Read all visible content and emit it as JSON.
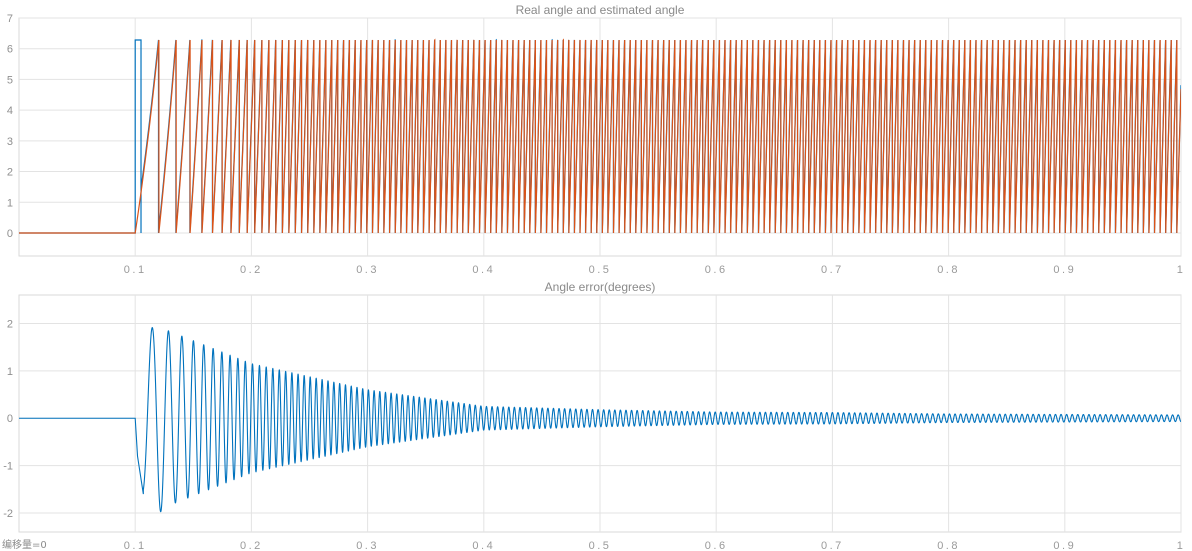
{
  "footer_text": "编移量=0",
  "chart_data": [
    {
      "type": "line",
      "title": "Real angle and estimated angle",
      "xlabel": "",
      "ylabel": "",
      "xlim": [
        0,
        1
      ],
      "ylim": [
        -0.75,
        7
      ],
      "grid": true,
      "x_ticks": [
        0.1,
        0.2,
        0.3,
        0.4,
        0.5,
        0.6,
        0.7,
        0.8,
        0.9,
        1
      ],
      "x_tick_labels": [
        "0.1",
        "0.2",
        "0.3",
        "0.4",
        "0.5",
        "0.6",
        "0.7",
        "0.8",
        "0.9",
        "1"
      ],
      "y_ticks": [
        0,
        1,
        2,
        3,
        4,
        5,
        6,
        7
      ],
      "y_tick_labels": [
        "0",
        "1",
        "2",
        "3",
        "4",
        "5",
        "6",
        "7"
      ],
      "colors": {
        "real": "#0072BD",
        "estimated": "#D95319"
      },
      "series": [
        {
          "description": "real angle (blue), sawtooth wrapping 0..2π, mostly hidden under estimate",
          "color": "#0072BD",
          "start_time": 0.1,
          "amplitude_max": 6.283,
          "initial_spike": [
            0.1,
            0.105
          ],
          "first_wrap_period": 0.025,
          "final_wrap_period": 0.0048,
          "period_decay": 0.04,
          "x": [
            0,
            0.1,
            0.1,
            0.105,
            0.105,
            1
          ],
          "y": [
            0,
            0,
            6.28,
            6.28,
            0,
            6.28
          ]
        },
        {
          "description": "estimated angle (orange), sawtooth wrapping 0..2π with increasing frequency",
          "color": "#D95319",
          "start_time": 0.1,
          "amplitude_max": 6.283,
          "first_wrap_period": 0.025,
          "final_wrap_period": 0.0048,
          "period_decay": 0.04,
          "wrap_times_sample": [
            0.126,
            0.141,
            0.154,
            0.166,
            0.178,
            0.189,
            0.2,
            0.3,
            0.4,
            0.5,
            0.6,
            0.7,
            0.8,
            0.9,
            1.0
          ],
          "peak_value": 6.28,
          "trough_value": 0
        }
      ]
    },
    {
      "type": "line",
      "title": "Angle error(degrees)",
      "xlabel": "",
      "ylabel": "",
      "xlim": [
        0,
        1
      ],
      "ylim": [
        -2.4,
        2.6
      ],
      "grid": true,
      "x_ticks": [
        0.1,
        0.2,
        0.3,
        0.4,
        0.5,
        0.6,
        0.7,
        0.8,
        0.9,
        1
      ],
      "x_tick_labels": [
        "0.1",
        "0.2",
        "0.3",
        "0.4",
        "0.5",
        "0.6",
        "0.7",
        "0.8",
        "0.9",
        "1"
      ],
      "y_ticks": [
        -2,
        -1,
        0,
        1,
        2
      ],
      "y_tick_labels": [
        "-2",
        "-1",
        "0",
        "1",
        "2"
      ],
      "colors": {
        "error": "#0072BD"
      },
      "series": [
        {
          "description": "angle error, damped oscillation starting at t=0.1",
          "color": "#0072BD",
          "start_time": 0.1,
          "envelope_points": [
            [
              0.107,
              -1.6
            ],
            [
              0.118,
              2.05
            ],
            [
              0.128,
              -1.85
            ],
            [
              0.2,
              1.15
            ],
            [
              0.3,
              0.6
            ],
            [
              0.4,
              0.25
            ],
            [
              0.5,
              0.18
            ],
            [
              0.6,
              0.13
            ],
            [
              0.7,
              0.12
            ],
            [
              0.8,
              0.09
            ],
            [
              0.9,
              0.08
            ],
            [
              1.0,
              0.07
            ]
          ],
          "first_period": 0.0185,
          "final_period": 0.0048,
          "period_decay": 0.04
        }
      ]
    }
  ]
}
